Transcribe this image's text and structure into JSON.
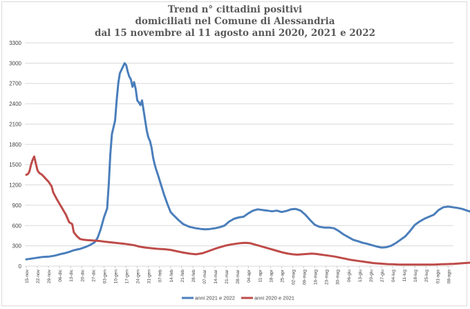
{
  "chart_data": {
    "type": "line",
    "title": [
      "Trend n° cittadini positivi",
      "domiciliati nel Comune di Alessandria",
      "dal 15 novembre al 11 agosto anni 2020, 2021 e 2022"
    ],
    "xlabel": "",
    "ylabel": "",
    "ylim": [
      0,
      3300
    ],
    "yticks": [
      0,
      300,
      600,
      900,
      1200,
      1500,
      1800,
      2100,
      2400,
      2700,
      3000,
      3300
    ],
    "grid": true,
    "legend_position": "bottom",
    "x_tick_labels": [
      "15-nov",
      "22-nov",
      "29-nov",
      "06-dic",
      "13-dic",
      "20-dic",
      "27-dic",
      "03-gen",
      "10-gen",
      "17-gen",
      "24-gen",
      "31-gen",
      "07-feb",
      "14-feb",
      "21-feb",
      "28-feb",
      "07-mar",
      "14-mar",
      "21-mar",
      "28-mar",
      "04-apr",
      "11-apr",
      "18-apr",
      "25-apr",
      "02-mag",
      "09-mag",
      "16-mag",
      "23-mag",
      "30-mag",
      "06-giu",
      "13-giu",
      "20-giu",
      "27-giu",
      "04-lug",
      "11-lug",
      "18-lug",
      "25-lug",
      "01-ago",
      "08-ago"
    ],
    "x_max_days": 269,
    "series": [
      {
        "name": "anni 2021 e 2022",
        "color": "#4a7ebb",
        "points": [
          [
            0,
            100
          ],
          [
            3,
            110
          ],
          [
            7,
            125
          ],
          [
            10,
            135
          ],
          [
            14,
            140
          ],
          [
            18,
            155
          ],
          [
            21,
            175
          ],
          [
            24,
            190
          ],
          [
            27,
            210
          ],
          [
            30,
            235
          ],
          [
            34,
            255
          ],
          [
            37,
            280
          ],
          [
            40,
            310
          ],
          [
            43,
            350
          ],
          [
            45,
            420
          ],
          [
            47,
            550
          ],
          [
            49,
            720
          ],
          [
            51,
            850
          ],
          [
            52,
            1200
          ],
          [
            53,
            1650
          ],
          [
            54,
            1950
          ],
          [
            55,
            2050
          ],
          [
            56,
            2150
          ],
          [
            57,
            2450
          ],
          [
            58,
            2700
          ],
          [
            59,
            2850
          ],
          [
            60,
            2900
          ],
          [
            61,
            2950
          ],
          [
            62,
            3000
          ],
          [
            63,
            2970
          ],
          [
            64,
            2870
          ],
          [
            65,
            2800
          ],
          [
            66,
            2760
          ],
          [
            67,
            2650
          ],
          [
            68,
            2720
          ],
          [
            69,
            2620
          ],
          [
            70,
            2450
          ],
          [
            71,
            2420
          ],
          [
            72,
            2380
          ],
          [
            73,
            2450
          ],
          [
            74,
            2300
          ],
          [
            75,
            2150
          ],
          [
            76,
            2000
          ],
          [
            77,
            1900
          ],
          [
            78,
            1850
          ],
          [
            79,
            1750
          ],
          [
            80,
            1600
          ],
          [
            81,
            1500
          ],
          [
            82,
            1420
          ],
          [
            83,
            1350
          ],
          [
            85,
            1200
          ],
          [
            87,
            1050
          ],
          [
            89,
            920
          ],
          [
            91,
            800
          ],
          [
            93,
            750
          ],
          [
            96,
            680
          ],
          [
            99,
            620
          ],
          [
            103,
            580
          ],
          [
            107,
            560
          ],
          [
            110,
            550
          ],
          [
            113,
            545
          ],
          [
            116,
            550
          ],
          [
            119,
            560
          ],
          [
            122,
            575
          ],
          [
            125,
            600
          ],
          [
            128,
            660
          ],
          [
            131,
            700
          ],
          [
            134,
            720
          ],
          [
            137,
            730
          ],
          [
            140,
            780
          ],
          [
            143,
            820
          ],
          [
            146,
            840
          ],
          [
            149,
            830
          ],
          [
            152,
            820
          ],
          [
            155,
            810
          ],
          [
            158,
            820
          ],
          [
            161,
            800
          ],
          [
            164,
            815
          ],
          [
            167,
            840
          ],
          [
            170,
            845
          ],
          [
            173,
            820
          ],
          [
            176,
            760
          ],
          [
            179,
            680
          ],
          [
            182,
            610
          ],
          [
            185,
            580
          ],
          [
            188,
            570
          ],
          [
            191,
            570
          ],
          [
            194,
            560
          ],
          [
            197,
            520
          ],
          [
            200,
            470
          ],
          [
            203,
            430
          ],
          [
            206,
            390
          ],
          [
            209,
            370
          ],
          [
            212,
            345
          ],
          [
            215,
            330
          ],
          [
            218,
            310
          ],
          [
            221,
            290
          ],
          [
            224,
            275
          ],
          [
            227,
            280
          ],
          [
            230,
            300
          ],
          [
            233,
            340
          ],
          [
            236,
            390
          ],
          [
            239,
            440
          ],
          [
            242,
            520
          ],
          [
            245,
            610
          ],
          [
            248,
            660
          ],
          [
            251,
            700
          ],
          [
            254,
            730
          ],
          [
            257,
            760
          ],
          [
            260,
            830
          ],
          [
            263,
            870
          ],
          [
            266,
            880
          ],
          [
            269,
            870
          ],
          [
            272,
            860
          ],
          [
            275,
            845
          ],
          [
            278,
            820
          ],
          [
            281,
            800
          ],
          [
            284,
            770
          ],
          [
            287,
            730
          ],
          [
            290,
            700
          ],
          [
            292,
            660
          ],
          [
            294,
            620
          ],
          [
            296,
            570
          ]
        ]
      },
      {
        "name": "anni 2020 e 2021",
        "color": "#be4b48",
        "points": [
          [
            0,
            1350
          ],
          [
            1,
            1360
          ],
          [
            2,
            1400
          ],
          [
            3,
            1500
          ],
          [
            4,
            1570
          ],
          [
            5,
            1620
          ],
          [
            6,
            1520
          ],
          [
            7,
            1420
          ],
          [
            8,
            1380
          ],
          [
            10,
            1350
          ],
          [
            12,
            1300
          ],
          [
            14,
            1250
          ],
          [
            16,
            1180
          ],
          [
            17,
            1090
          ],
          [
            19,
            1000
          ],
          [
            21,
            920
          ],
          [
            23,
            840
          ],
          [
            25,
            760
          ],
          [
            27,
            650
          ],
          [
            29,
            620
          ],
          [
            30,
            500
          ],
          [
            32,
            440
          ],
          [
            34,
            400
          ],
          [
            36,
            390
          ],
          [
            38,
            385
          ],
          [
            41,
            380
          ],
          [
            44,
            375
          ],
          [
            47,
            370
          ],
          [
            50,
            360
          ],
          [
            54,
            350
          ],
          [
            58,
            340
          ],
          [
            62,
            330
          ],
          [
            65,
            320
          ],
          [
            68,
            310
          ],
          [
            71,
            290
          ],
          [
            75,
            275
          ],
          [
            79,
            265
          ],
          [
            83,
            255
          ],
          [
            87,
            250
          ],
          [
            91,
            240
          ],
          [
            95,
            220
          ],
          [
            99,
            200
          ],
          [
            103,
            185
          ],
          [
            107,
            175
          ],
          [
            111,
            190
          ],
          [
            114,
            215
          ],
          [
            117,
            240
          ],
          [
            120,
            265
          ],
          [
            123,
            285
          ],
          [
            126,
            305
          ],
          [
            129,
            320
          ],
          [
            132,
            330
          ],
          [
            135,
            340
          ],
          [
            138,
            345
          ],
          [
            141,
            340
          ],
          [
            144,
            320
          ],
          [
            147,
            300
          ],
          [
            150,
            280
          ],
          [
            153,
            260
          ],
          [
            156,
            240
          ],
          [
            159,
            220
          ],
          [
            162,
            200
          ],
          [
            165,
            185
          ],
          [
            168,
            175
          ],
          [
            171,
            170
          ],
          [
            174,
            175
          ],
          [
            177,
            180
          ],
          [
            180,
            185
          ],
          [
            183,
            180
          ],
          [
            186,
            170
          ],
          [
            189,
            160
          ],
          [
            192,
            150
          ],
          [
            195,
            140
          ],
          [
            198,
            125
          ],
          [
            201,
            110
          ],
          [
            204,
            95
          ],
          [
            207,
            85
          ],
          [
            210,
            75
          ],
          [
            213,
            65
          ],
          [
            216,
            55
          ],
          [
            219,
            45
          ],
          [
            222,
            40
          ],
          [
            225,
            35
          ],
          [
            228,
            30
          ],
          [
            231,
            28
          ],
          [
            234,
            25
          ],
          [
            237,
            24
          ],
          [
            240,
            23
          ],
          [
            243,
            22
          ],
          [
            246,
            22
          ],
          [
            249,
            22
          ],
          [
            252,
            22
          ],
          [
            255,
            23
          ],
          [
            258,
            25
          ],
          [
            261,
            28
          ],
          [
            264,
            30
          ],
          [
            267,
            32
          ],
          [
            270,
            35
          ],
          [
            273,
            40
          ],
          [
            276,
            45
          ],
          [
            279,
            50
          ],
          [
            282,
            55
          ],
          [
            285,
            60
          ],
          [
            288,
            65
          ],
          [
            291,
            70
          ],
          [
            294,
            72
          ],
          [
            296,
            70
          ]
        ]
      }
    ]
  }
}
